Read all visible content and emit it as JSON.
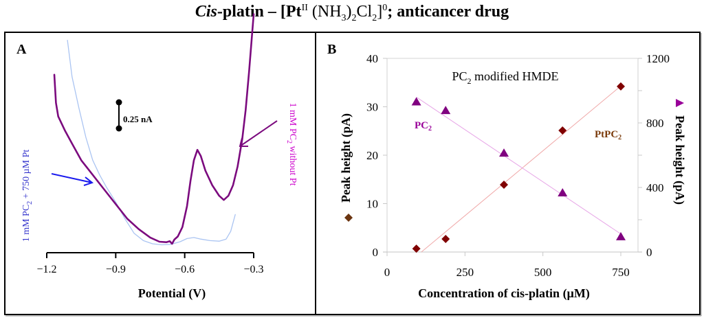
{
  "figure_title": {
    "italic_part": "Cis",
    "rest_prefix": "-platin – [Pt",
    "sup_oxidation": "II",
    "mid": " (NH",
    "sub_nh3": "3",
    "close1": ")",
    "sub_nh3_count": "2",
    "cl": "Cl",
    "sub_cl": "2",
    "close2": "]",
    "sup_charge": "0",
    "suffix": "; anticancer drug"
  },
  "chart_data": [
    {
      "panel": "A",
      "type": "line",
      "title": "",
      "xlabel": "Potential (V)",
      "ylabel": "",
      "xlim": [
        -1.2,
        -0.3
      ],
      "x_ticks": [
        -1.2,
        -0.9,
        -0.6,
        -0.3
      ],
      "x_tick_labels": [
        "−1.2",
        "−0.9",
        "−0.6",
        "−0.3"
      ],
      "y_axis_shown": false,
      "grid": false,
      "scale_bar": {
        "label": "0.25 nA",
        "value_nA": 0.25
      },
      "y_units_note": "relative current (nA), arbitrary offset; scale bar = 0.25 nA",
      "series": [
        {
          "name": "1 mM PC2 without Pt",
          "label_main": "1 mM PC",
          "label_sub": "2",
          "label_tail": " without Pt",
          "color": "#7b0a7e",
          "label_color": "#cc00cc",
          "points": [
            [
              -1.167,
              1.62
            ],
            [
              -1.16,
              1.35
            ],
            [
              -1.15,
              1.22
            ],
            [
              -1.12,
              1.08
            ],
            [
              -1.09,
              0.96
            ],
            [
              -1.05,
              0.8
            ],
            [
              -1.0,
              0.66
            ],
            [
              -0.95,
              0.52
            ],
            [
              -0.9,
              0.38
            ],
            [
              -0.85,
              0.24
            ],
            [
              -0.8,
              0.14
            ],
            [
              -0.75,
              0.06
            ],
            [
              -0.71,
              0.02
            ],
            [
              -0.68,
              0.015
            ],
            [
              -0.665,
              0.025
            ],
            [
              -0.655,
              0.0
            ],
            [
              -0.645,
              0.04
            ],
            [
              -0.63,
              0.07
            ],
            [
              -0.61,
              0.16
            ],
            [
              -0.59,
              0.36
            ],
            [
              -0.575,
              0.6
            ],
            [
              -0.56,
              0.8
            ],
            [
              -0.545,
              0.9
            ],
            [
              -0.53,
              0.84
            ],
            [
              -0.51,
              0.7
            ],
            [
              -0.48,
              0.56
            ],
            [
              -0.45,
              0.46
            ],
            [
              -0.43,
              0.42
            ],
            [
              -0.41,
              0.46
            ],
            [
              -0.39,
              0.56
            ],
            [
              -0.37,
              0.74
            ],
            [
              -0.35,
              1.0
            ],
            [
              -0.335,
              1.28
            ],
            [
              -0.32,
              1.65
            ],
            [
              -0.3,
              2.2
            ]
          ]
        },
        {
          "name": "1 mM PC2 + 750 µM Pt",
          "label_main": "1 mM PC",
          "label_sub": "2",
          "label_tail": " + 750 µM Pt",
          "color": "#aac4f2",
          "label_color": "#3333cc",
          "points": [
            [
              -1.11,
              1.95
            ],
            [
              -1.09,
              1.6
            ],
            [
              -1.06,
              1.3
            ],
            [
              -1.03,
              1.02
            ],
            [
              -1.0,
              0.8
            ],
            [
              -0.97,
              0.66
            ],
            [
              -0.94,
              0.54
            ],
            [
              -0.9,
              0.4
            ],
            [
              -0.86,
              0.24
            ],
            [
              -0.82,
              0.1
            ],
            [
              -0.78,
              0.03
            ],
            [
              -0.74,
              0.0
            ],
            [
              -0.7,
              -0.01
            ],
            [
              -0.66,
              -0.005
            ],
            [
              -0.62,
              0.02
            ],
            [
              -0.59,
              0.05
            ],
            [
              -0.56,
              0.06
            ],
            [
              -0.53,
              0.045
            ],
            [
              -0.49,
              0.03
            ],
            [
              -0.45,
              0.025
            ],
            [
              -0.42,
              0.045
            ],
            [
              -0.4,
              0.12
            ],
            [
              -0.38,
              0.28
            ]
          ]
        }
      ],
      "annotations": [
        {
          "type": "arrow",
          "points_to_series": "1 mM PC2 + 750 µM Pt",
          "color": "#1a1aee"
        },
        {
          "type": "arrow",
          "points_to_series": "1 mM PC2 without Pt",
          "color": "#7b0a7e"
        }
      ]
    },
    {
      "panel": "B",
      "type": "scatter",
      "title": "PC2 modified HMDE",
      "title_main": "PC",
      "title_sub": "2",
      "title_tail": " modified HMDE",
      "xlabel": "Concentration of  cis-platin (µM)",
      "xlim": [
        0,
        800
      ],
      "x_ticks": [
        0,
        250,
        500,
        750
      ],
      "y_left": {
        "label": "Peak height (pA)",
        "marker": "diamond",
        "range": [
          0,
          40
        ],
        "ticks": [
          0,
          10,
          20,
          30,
          40
        ]
      },
      "y_right": {
        "label": "Peak height (pA)",
        "marker": "triangle",
        "range": [
          0,
          1200
        ],
        "ticks": [
          0,
          400,
          800,
          1200
        ],
        "minor_ticks": [
          200,
          600,
          1000
        ]
      },
      "grid": false,
      "series": [
        {
          "name": "PtPC2",
          "label_main": "PtPC",
          "label_sub": "2",
          "axis": "left",
          "marker": "diamond",
          "color": "#800000",
          "label_color": "#7a3a0a",
          "trend_color": "#f0a8a8",
          "x": [
            94,
            188,
            375,
            563,
            750
          ],
          "y": [
            0.7,
            2.7,
            13.9,
            25.1,
            34.2
          ],
          "trendline": {
            "x": [
              110,
              750
            ],
            "y": [
              0,
              34.3
            ]
          }
        },
        {
          "name": "PC2",
          "label_main": "PC",
          "label_sub": "2",
          "axis": "right",
          "marker": "triangle",
          "color": "#800080",
          "label_color": "#990099",
          "trend_color": "#e7a6e7",
          "x": [
            94,
            188,
            375,
            563,
            750
          ],
          "y": [
            930,
            876,
            612,
            366,
            94
          ],
          "trendline": {
            "x": [
              94,
              750
            ],
            "y": [
              960,
              112
            ]
          }
        }
      ]
    }
  ],
  "panel_labels": {
    "a": "A",
    "b": "B"
  },
  "legend_markers": {
    "left": "◆",
    "right": "▶"
  }
}
